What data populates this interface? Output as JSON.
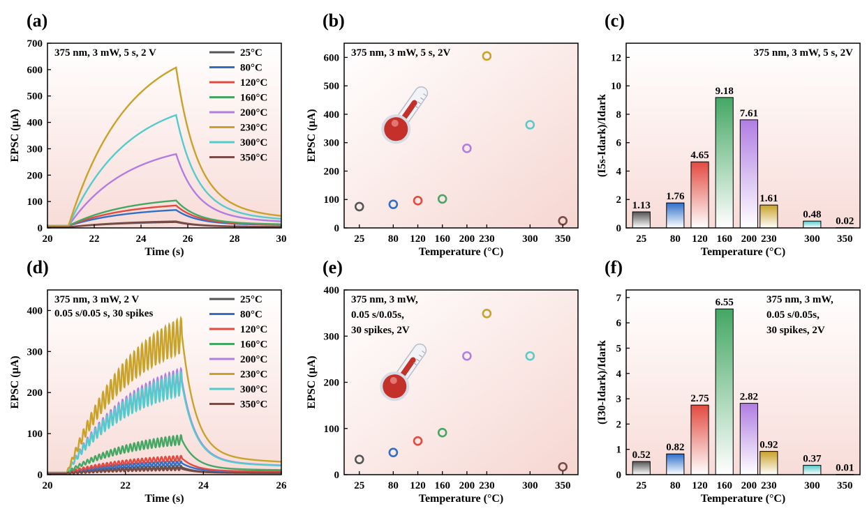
{
  "panel_labels": [
    "(a)",
    "(b)",
    "(c)",
    "(d)",
    "(e)",
    "(f)"
  ],
  "series_colors": [
    "#555555",
    "#2f6fca",
    "#e24a40",
    "#44a763",
    "#b07ee2",
    "#c9a22a",
    "#55cbcb",
    "#7b4a44"
  ],
  "chart_data": [
    {
      "panel": "(a)",
      "type": "line",
      "annotation": [
        "375 nm, 3 mW, 5 s, 2 V"
      ],
      "xlabel": "Time (s)",
      "ylabel": "EPSC (μA)",
      "xlim": [
        20,
        30
      ],
      "ylim": [
        0,
        700
      ],
      "xticks": [
        20,
        22,
        24,
        26,
        28,
        30
      ],
      "yticks": [
        0,
        100,
        200,
        300,
        400,
        500,
        600,
        700
      ],
      "legend_position": "top-right",
      "pulse": {
        "on": 20.9,
        "off": 25.5
      },
      "series": [
        {
          "name": "25°C",
          "baseline": 3,
          "peak": 22
        },
        {
          "name": "80°C",
          "baseline": 8,
          "peak": 68
        },
        {
          "name": "120°C",
          "baseline": 8,
          "peak": 85
        },
        {
          "name": "160°C",
          "baseline": 8,
          "peak": 104
        },
        {
          "name": "200°C",
          "baseline": 8,
          "peak": 280
        },
        {
          "name": "230°C",
          "baseline": 8,
          "peak": 608
        },
        {
          "name": "300°C",
          "baseline": 8,
          "peak": 428
        },
        {
          "name": "350°C",
          "baseline": 3,
          "peak": 25
        }
      ]
    },
    {
      "panel": "(b)",
      "type": "scatter",
      "annotation": [
        "375 nm, 3 mW, 5 s, 2V"
      ],
      "xlabel": "Temperature (°C)",
      "ylabel": "EPSC (μA)",
      "ylim": [
        0,
        650
      ],
      "xticks": [
        "25",
        "80",
        "120",
        "160",
        "200",
        "230",
        "300",
        "350"
      ],
      "yticks": [
        0,
        100,
        200,
        300,
        400,
        500,
        600
      ],
      "x": [
        25,
        80,
        120,
        160,
        200,
        230,
        300,
        350
      ],
      "values": [
        75,
        83,
        96,
        102,
        280,
        605,
        363,
        25
      ]
    },
    {
      "panel": "(c)",
      "type": "bar",
      "annotation": [
        "375 nm, 3 mW, 5 s, 2V"
      ],
      "xlabel": "Temperature (°C)",
      "ylabel": "(I5s-Idark)/Idark",
      "ylim": [
        0,
        13
      ],
      "xticks": [
        "25",
        "80",
        "120",
        "160",
        "200",
        "230",
        "300",
        "350"
      ],
      "yticks": [
        0,
        2,
        4,
        6,
        8,
        10,
        12
      ],
      "categories": [
        25,
        80,
        120,
        160,
        200,
        230,
        300,
        350
      ],
      "values": [
        1.13,
        1.76,
        4.65,
        9.18,
        7.61,
        1.61,
        0.48,
        0.02
      ],
      "labels": [
        "1.13",
        "1.76",
        "4.65",
        "9.18",
        "7.61",
        "1.61",
        "0.48",
        "0.02"
      ]
    },
    {
      "panel": "(d)",
      "type": "line",
      "annotation": [
        "375 nm, 3 mW, 2 V",
        "0.05 s/0.05 s, 30 spikes"
      ],
      "xlabel": "Time (s)",
      "ylabel": "EPSC (μA)",
      "xlim": [
        20,
        26
      ],
      "ylim": [
        0,
        450
      ],
      "xticks": [
        20,
        22,
        24,
        26
      ],
      "yticks": [
        0,
        100,
        200,
        300,
        400
      ],
      "legend_position": "top-right",
      "pulse": {
        "on": 20.5,
        "off": 23.45
      },
      "series": [
        {
          "name": "25°C",
          "baseline": 3,
          "peak": 18
        },
        {
          "name": "80°C",
          "baseline": 5,
          "peak": 28
        },
        {
          "name": "120°C",
          "baseline": 5,
          "peak": 40
        },
        {
          "name": "160°C",
          "baseline": 5,
          "peak": 85
        },
        {
          "name": "200°C",
          "baseline": 5,
          "peak": 230
        },
        {
          "name": "230°C",
          "baseline": 5,
          "peak": 340
        },
        {
          "name": "300°C",
          "baseline": 5,
          "peak": 222
        },
        {
          "name": "350°C",
          "baseline": 3,
          "peak": 14
        }
      ]
    },
    {
      "panel": "(e)",
      "type": "scatter",
      "annotation": [
        "375 nm, 3 mW,",
        "0.05 s/0.05s,",
        "30 spikes, 2V"
      ],
      "xlabel": "Temperature (°C)",
      "ylabel": "EPSC (μA)",
      "ylim": [
        0,
        400
      ],
      "xticks": [
        "25",
        "80",
        "120",
        "160",
        "200",
        "230",
        "300",
        "350"
      ],
      "yticks": [
        0,
        100,
        200,
        300,
        400
      ],
      "x": [
        25,
        80,
        120,
        160,
        200,
        230,
        300,
        350
      ],
      "values": [
        33,
        48,
        73,
        91,
        257,
        349,
        257,
        17
      ]
    },
    {
      "panel": "(f)",
      "type": "bar",
      "annotation": [
        "375 nm, 3 mW,",
        "0.05 s/0.05s,",
        "30 spikes, 2V"
      ],
      "xlabel": "Temperature (°C)",
      "ylabel": "(I30-Idark)/Idark",
      "ylim": [
        0,
        7.3
      ],
      "xticks": [
        "25",
        "80",
        "120",
        "160",
        "200",
        "230",
        "300",
        "350"
      ],
      "yticks": [
        0,
        1,
        2,
        3,
        4,
        5,
        6,
        7
      ],
      "categories": [
        25,
        80,
        120,
        160,
        200,
        230,
        300,
        350
      ],
      "values": [
        0.52,
        0.82,
        2.75,
        6.55,
        2.82,
        0.92,
        0.37,
        0.01
      ],
      "labels": [
        "0.52",
        "0.82",
        "2.75",
        "6.55",
        "2.82",
        "0.92",
        "0.37",
        "0.01"
      ]
    }
  ]
}
